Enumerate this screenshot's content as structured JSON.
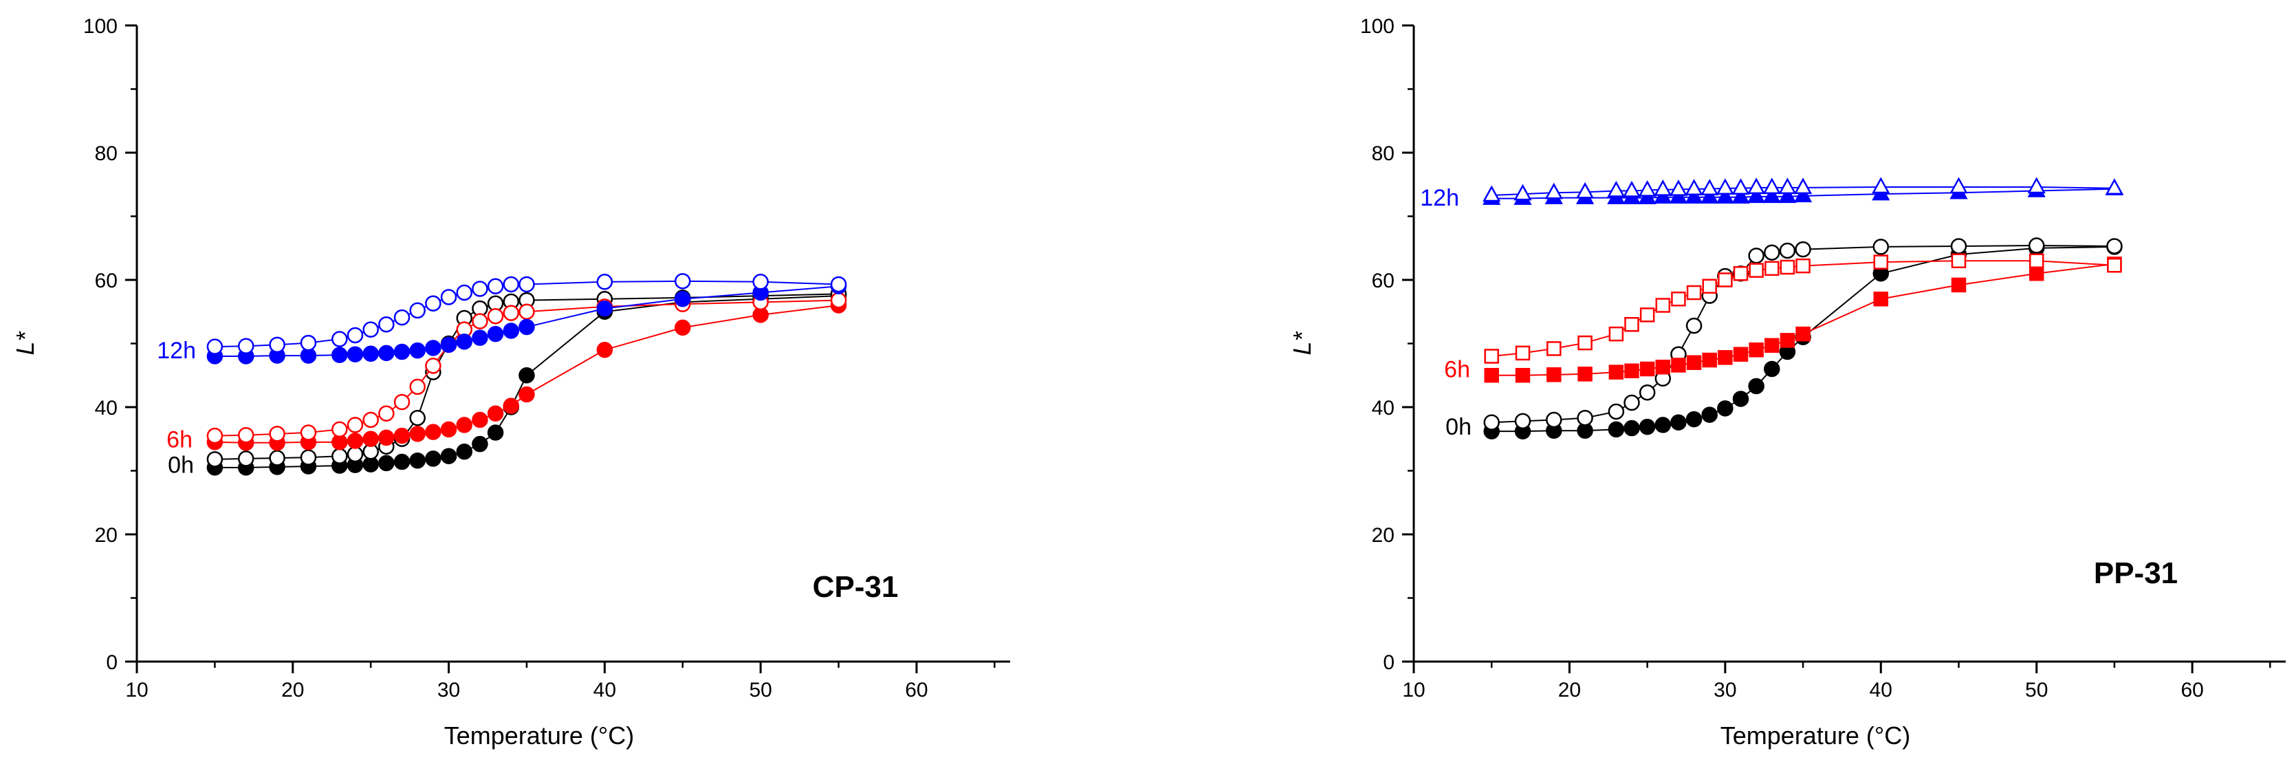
{
  "chart_data": [
    {
      "type": "scatter",
      "panel_label": "CP-31",
      "xlabel": "Temperature (°C)",
      "ylabel": "L*",
      "xlim": [
        10,
        66
      ],
      "ylim": [
        0,
        100
      ],
      "xticks": [
        10,
        20,
        30,
        40,
        50,
        60
      ],
      "yticks": [
        0,
        20,
        40,
        60,
        80,
        100
      ],
      "x_minor_step": 5,
      "y_minor_step": 10,
      "grid": false,
      "series_labels": [
        {
          "text": "12h",
          "color": "#0000ff",
          "x": 15,
          "y": 49
        },
        {
          "text": "6h",
          "color": "#ff0000",
          "x": 15,
          "y": 35
        },
        {
          "text": "0h",
          "color": "#000000",
          "x": 15,
          "y": 31
        }
      ],
      "series": [
        {
          "group": "0h",
          "marker": "circle",
          "filled": true,
          "color": "#000000",
          "x": [
            15,
            17,
            19,
            21,
            23,
            24,
            25,
            26,
            27,
            28,
            29,
            30,
            31,
            32,
            33,
            34,
            35,
            40,
            45,
            50,
            55
          ],
          "y": [
            30.5,
            30.5,
            30.6,
            30.7,
            30.8,
            30.9,
            31,
            31.2,
            31.4,
            31.6,
            31.9,
            32.3,
            33,
            34.2,
            36,
            40,
            45,
            55,
            56.5,
            57,
            57.5
          ]
        },
        {
          "group": "0h",
          "marker": "circle",
          "filled": false,
          "color": "#000000",
          "x": [
            15,
            17,
            19,
            21,
            23,
            24,
            25,
            26,
            27,
            28,
            29,
            30,
            31,
            32,
            33,
            34,
            35,
            40,
            45,
            50,
            55
          ],
          "y": [
            31.8,
            31.9,
            32,
            32.1,
            32.3,
            32.6,
            33,
            33.8,
            35,
            38.3,
            45.5,
            50,
            54,
            55.5,
            56.3,
            56.6,
            56.8,
            57,
            57.2,
            57.5,
            57.8
          ]
        },
        {
          "group": "6h",
          "marker": "circle",
          "filled": true,
          "color": "#ff0000",
          "x": [
            15,
            17,
            19,
            21,
            23,
            24,
            25,
            26,
            27,
            28,
            29,
            30,
            31,
            32,
            33,
            34,
            35,
            40,
            45,
            50,
            55
          ],
          "y": [
            34.5,
            34.4,
            34.4,
            34.5,
            34.5,
            34.7,
            35,
            35.2,
            35.5,
            35.8,
            36.1,
            36.5,
            37.2,
            38,
            39,
            40.2,
            42,
            49,
            52.5,
            54.5,
            56
          ]
        },
        {
          "group": "6h",
          "marker": "circle",
          "filled": false,
          "color": "#ff0000",
          "x": [
            15,
            17,
            19,
            21,
            23,
            24,
            25,
            26,
            27,
            28,
            29,
            30,
            31,
            32,
            33,
            34,
            35,
            40,
            45,
            50,
            55
          ],
          "y": [
            35.5,
            35.6,
            35.8,
            36,
            36.5,
            37.2,
            38,
            39,
            40.8,
            43.2,
            46.5,
            49.8,
            52.2,
            53.5,
            54.3,
            54.8,
            55,
            55.8,
            56.2,
            56.5,
            56.8
          ]
        },
        {
          "group": "12h",
          "marker": "circle",
          "filled": true,
          "color": "#0000ff",
          "x": [
            15,
            17,
            19,
            21,
            23,
            24,
            25,
            26,
            27,
            28,
            29,
            30,
            31,
            32,
            33,
            34,
            35,
            40,
            45,
            50,
            55
          ],
          "y": [
            48,
            48,
            48.1,
            48.1,
            48.2,
            48.3,
            48.4,
            48.5,
            48.7,
            48.9,
            49.3,
            49.8,
            50.3,
            50.9,
            51.5,
            52,
            52.6,
            55.5,
            57,
            58,
            59
          ]
        },
        {
          "group": "12h",
          "marker": "circle",
          "filled": false,
          "color": "#0000ff",
          "x": [
            15,
            17,
            19,
            21,
            23,
            24,
            25,
            26,
            27,
            28,
            29,
            30,
            31,
            32,
            33,
            34,
            35,
            40,
            45,
            50,
            55
          ],
          "y": [
            49.5,
            49.6,
            49.8,
            50.1,
            50.7,
            51.3,
            52.2,
            53,
            54.1,
            55.2,
            56.3,
            57.3,
            58,
            58.6,
            59,
            59.3,
            59.3,
            59.7,
            59.8,
            59.7,
            59.3
          ]
        }
      ]
    },
    {
      "type": "scatter",
      "panel_label": "PP-31",
      "xlabel": "Temperature (°C)",
      "ylabel": "L*",
      "xlim": [
        10,
        66
      ],
      "ylim": [
        0,
        100
      ],
      "xticks": [
        10,
        20,
        30,
        40,
        50,
        60
      ],
      "yticks": [
        0,
        20,
        40,
        60,
        80,
        100
      ],
      "x_minor_step": 5,
      "y_minor_step": 10,
      "grid": false,
      "series_labels": [
        {
          "text": "12h",
          "color": "#0000ff",
          "x": 15,
          "y": 73
        },
        {
          "text": "6h",
          "color": "#ff0000",
          "x": 15,
          "y": 46
        },
        {
          "text": "0h",
          "color": "#000000",
          "x": 15,
          "y": 37
        }
      ],
      "series": [
        {
          "group": "0h",
          "marker": "circle",
          "filled": true,
          "color": "#000000",
          "x": [
            15,
            17,
            19,
            21,
            23,
            24,
            25,
            26,
            27,
            28,
            29,
            30,
            31,
            32,
            33,
            34,
            35,
            40,
            45,
            50,
            55
          ],
          "y": [
            36.2,
            36.2,
            36.3,
            36.3,
            36.5,
            36.7,
            36.9,
            37.2,
            37.6,
            38.1,
            38.8,
            39.8,
            41.3,
            43.3,
            46,
            48.7,
            51,
            61,
            64,
            65,
            65.2
          ]
        },
        {
          "group": "0h",
          "marker": "circle",
          "filled": false,
          "color": "#000000",
          "x": [
            15,
            17,
            19,
            21,
            23,
            24,
            25,
            26,
            27,
            28,
            29,
            30,
            31,
            32,
            33,
            34,
            35,
            40,
            45,
            50,
            55
          ],
          "y": [
            37.6,
            37.8,
            38,
            38.3,
            39.3,
            40.7,
            42.3,
            44.5,
            48.3,
            52.8,
            57.5,
            60.6,
            61,
            63.8,
            64.3,
            64.6,
            64.8,
            65.2,
            65.3,
            65.4,
            65.3
          ]
        },
        {
          "group": "6h",
          "marker": "square",
          "filled": true,
          "color": "#ff0000",
          "x": [
            15,
            17,
            19,
            21,
            23,
            24,
            25,
            26,
            27,
            28,
            29,
            30,
            31,
            32,
            33,
            34,
            35,
            40,
            45,
            50,
            55
          ],
          "y": [
            45,
            45,
            45.1,
            45.2,
            45.5,
            45.7,
            46,
            46.3,
            46.6,
            47,
            47.4,
            47.8,
            48.3,
            49,
            49.7,
            50.5,
            51.5,
            57,
            59.2,
            61,
            62.5
          ]
        },
        {
          "group": "6h",
          "marker": "square",
          "filled": false,
          "color": "#ff0000",
          "x": [
            15,
            17,
            19,
            21,
            23,
            24,
            25,
            26,
            27,
            28,
            29,
            30,
            31,
            32,
            33,
            34,
            35,
            40,
            45,
            50,
            55
          ],
          "y": [
            48,
            48.5,
            49.2,
            50.1,
            51.5,
            53,
            54.5,
            56,
            57,
            58,
            59,
            60,
            61,
            61.5,
            61.8,
            62,
            62.2,
            62.8,
            63,
            63,
            62.3
          ]
        },
        {
          "group": "12h",
          "marker": "triangle",
          "filled": true,
          "color": "#0000ff",
          "x": [
            15,
            17,
            19,
            21,
            23,
            24,
            25,
            26,
            27,
            28,
            29,
            30,
            31,
            32,
            33,
            34,
            35,
            40,
            45,
            50,
            55
          ],
          "y": [
            72.8,
            72.8,
            72.9,
            72.9,
            72.9,
            72.9,
            72.9,
            73,
            73,
            73,
            73,
            73,
            73,
            73.1,
            73.1,
            73.1,
            73.2,
            73.5,
            73.7,
            74,
            74.3
          ]
        },
        {
          "group": "12h",
          "marker": "triangle",
          "filled": false,
          "color": "#0000ff",
          "x": [
            15,
            17,
            19,
            21,
            23,
            24,
            25,
            26,
            27,
            28,
            29,
            30,
            31,
            32,
            33,
            34,
            35,
            40,
            45,
            50,
            55
          ],
          "y": [
            73.3,
            73.5,
            73.7,
            73.8,
            74,
            74,
            74.1,
            74.2,
            74.2,
            74.3,
            74.3,
            74.4,
            74.4,
            74.5,
            74.5,
            74.5,
            74.5,
            74.6,
            74.6,
            74.6,
            74.4
          ]
        }
      ]
    }
  ]
}
